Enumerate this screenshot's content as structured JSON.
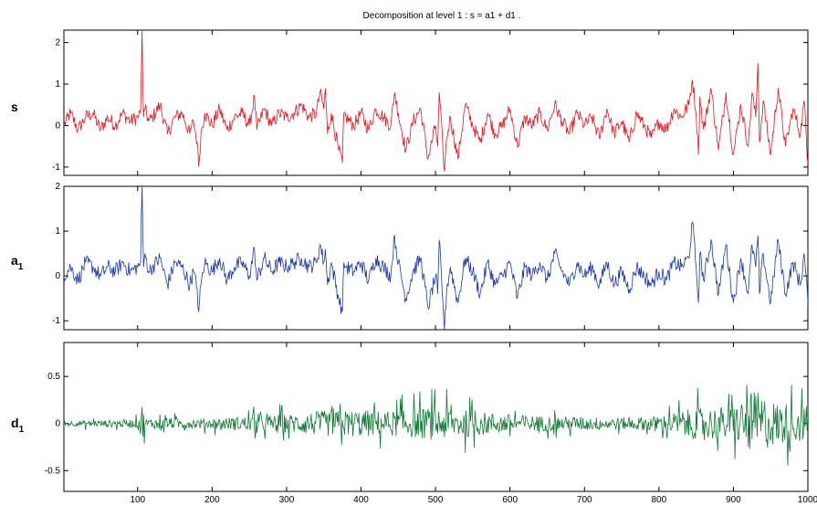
{
  "chart_data": [
    {
      "type": "line",
      "title": "Decomposition at level 1 : s = a1 + d1 .",
      "ylabel": "s",
      "color": "#e8141c",
      "xlim": [
        1,
        1000
      ],
      "ylim": [
        -1.2,
        2.3
      ],
      "yticks": [
        -1,
        0,
        1,
        2
      ],
      "xticks": [
        100,
        200,
        300,
        400,
        500,
        600,
        700,
        800,
        900,
        1000
      ],
      "show_xtick_labels": false,
      "series": [
        {
          "x": [
            1,
            10,
            20,
            30,
            40,
            50,
            60,
            70,
            80,
            90,
            100,
            104,
            106,
            107,
            108,
            110,
            115,
            120,
            130,
            140,
            150,
            160,
            170,
            175,
            180,
            182,
            185,
            190,
            200,
            210,
            220,
            230,
            240,
            250,
            257,
            260,
            270,
            280,
            290,
            300,
            310,
            320,
            330,
            340,
            345,
            350,
            352,
            355,
            360,
            370,
            375,
            377,
            380,
            390,
            400,
            410,
            420,
            430,
            440,
            445,
            450,
            460,
            470,
            480,
            490,
            500,
            503,
            505,
            510,
            512,
            515,
            520,
            530,
            540,
            550,
            560,
            570,
            580,
            590,
            600,
            610,
            620,
            630,
            640,
            650,
            660,
            670,
            680,
            690,
            700,
            710,
            720,
            730,
            740,
            750,
            760,
            770,
            780,
            790,
            800,
            810,
            820,
            830,
            840,
            845,
            850,
            853,
            855,
            860,
            870,
            880,
            890,
            900,
            910,
            920,
            925,
            930,
            933,
            935,
            940,
            950,
            960,
            970,
            980,
            990,
            995,
            1000
          ],
          "y": [
            0.0,
            0.3,
            -0.1,
            0.2,
            0.3,
            -0.1,
            0.2,
            0.0,
            0.3,
            0.1,
            0.2,
            0.3,
            2.3,
            0.9,
            0.2,
            0.4,
            0.1,
            0.2,
            0.5,
            -0.2,
            0.2,
            0.3,
            -0.2,
            0.1,
            -0.4,
            -1.0,
            -0.2,
            0.3,
            0.0,
            0.4,
            -0.1,
            0.2,
            0.3,
            0.0,
            0.7,
            -0.1,
            0.4,
            0.0,
            0.3,
            0.2,
            0.3,
            0.5,
            0.2,
            0.3,
            0.8,
            0.4,
            0.9,
            -0.2,
            0.3,
            -0.6,
            -0.9,
            0.3,
            0.2,
            0.0,
            0.3,
            -0.1,
            0.4,
            0.2,
            0.0,
            0.8,
            0.3,
            -0.6,
            0.1,
            0.4,
            -0.8,
            0.0,
            -0.5,
            0.8,
            -0.6,
            -1.1,
            -0.3,
            0.2,
            -0.8,
            0.5,
            0.0,
            -0.4,
            0.3,
            -0.2,
            0.0,
            0.4,
            -0.5,
            0.2,
            0.0,
            0.3,
            -0.1,
            0.5,
            0.1,
            -0.2,
            0.3,
            0.0,
            0.2,
            -0.3,
            0.4,
            -0.2,
            0.1,
            -0.4,
            0.3,
            0.0,
            -0.3,
            0.1,
            -0.1,
            0.4,
            0.2,
            0.5,
            1.1,
            0.3,
            -0.7,
            0.7,
            -0.1,
            0.9,
            -0.6,
            0.8,
            -0.7,
            0.5,
            -0.5,
            0.8,
            0.2,
            1.5,
            -0.4,
            0.6,
            -0.7,
            0.9,
            -0.5,
            0.4,
            -0.2,
            0.6,
            -0.9
          ]
        }
      ]
    },
    {
      "type": "line",
      "ylabel": "a",
      "ylabel_sub": "1",
      "color": "#1a3aa6",
      "xlim": [
        1,
        1000
      ],
      "ylim": [
        -1.2,
        2.0
      ],
      "yticks": [
        -1,
        0,
        1,
        2
      ],
      "xticks": [
        100,
        200,
        300,
        400,
        500,
        600,
        700,
        800,
        900,
        1000
      ],
      "show_xtick_labels": false,
      "series": [
        {
          "x": [
            1,
            10,
            20,
            30,
            40,
            50,
            60,
            70,
            80,
            90,
            100,
            104,
            106,
            107,
            108,
            110,
            115,
            120,
            130,
            140,
            150,
            160,
            170,
            175,
            180,
            182,
            185,
            190,
            200,
            210,
            220,
            230,
            240,
            250,
            257,
            260,
            270,
            280,
            290,
            300,
            310,
            320,
            330,
            340,
            345,
            350,
            352,
            355,
            360,
            370,
            375,
            377,
            380,
            390,
            400,
            410,
            420,
            430,
            440,
            445,
            450,
            460,
            470,
            480,
            490,
            500,
            503,
            505,
            510,
            512,
            515,
            520,
            530,
            540,
            550,
            560,
            570,
            580,
            590,
            600,
            610,
            620,
            630,
            640,
            650,
            660,
            670,
            680,
            690,
            700,
            710,
            720,
            730,
            740,
            750,
            760,
            770,
            780,
            790,
            800,
            810,
            820,
            830,
            840,
            845,
            850,
            853,
            855,
            860,
            870,
            880,
            890,
            900,
            910,
            920,
            925,
            930,
            933,
            935,
            940,
            950,
            960,
            970,
            980,
            990,
            995,
            1000
          ],
          "y": [
            0.0,
            0.2,
            -0.1,
            0.3,
            0.2,
            0.0,
            0.2,
            0.1,
            0.3,
            0.1,
            0.2,
            0.3,
            2.0,
            0.9,
            0.2,
            0.5,
            0.1,
            0.2,
            0.4,
            -0.2,
            0.3,
            0.2,
            -0.2,
            0.1,
            -0.3,
            -0.8,
            -0.2,
            0.3,
            0.1,
            0.4,
            -0.1,
            0.2,
            0.3,
            0.0,
            0.6,
            -0.1,
            0.4,
            0.1,
            0.3,
            0.2,
            0.3,
            0.4,
            0.2,
            0.3,
            0.7,
            0.3,
            0.6,
            -0.2,
            0.3,
            -0.5,
            -0.8,
            0.3,
            0.2,
            0.1,
            0.3,
            -0.1,
            0.4,
            0.2,
            0.0,
            0.9,
            0.3,
            -0.5,
            0.1,
            0.4,
            -0.7,
            0.0,
            -0.4,
            0.8,
            -0.6,
            -1.2,
            -0.3,
            0.2,
            -0.6,
            0.4,
            0.1,
            -0.4,
            0.3,
            -0.2,
            0.0,
            0.3,
            -0.5,
            0.2,
            0.0,
            0.3,
            -0.1,
            0.5,
            0.1,
            -0.2,
            0.3,
            0.0,
            0.2,
            -0.2,
            0.3,
            -0.2,
            0.1,
            -0.3,
            0.2,
            0.0,
            -0.2,
            0.1,
            -0.1,
            0.3,
            0.2,
            0.4,
            1.2,
            0.2,
            -0.6,
            0.5,
            -0.1,
            0.8,
            -0.4,
            0.7,
            -0.6,
            0.4,
            -0.4,
            0.7,
            0.2,
            0.9,
            -0.4,
            0.5,
            -0.6,
            0.8,
            -0.4,
            0.3,
            -0.2,
            0.5,
            -0.6
          ]
        }
      ]
    },
    {
      "type": "line",
      "ylabel": "d",
      "ylabel_sub": "1",
      "color": "#0f7a33",
      "xlim": [
        1,
        1000
      ],
      "ylim": [
        -0.72,
        0.86
      ],
      "yticks": [
        -0.5,
        0,
        0.5
      ],
      "ytick_labels": [
        "-0.5",
        "0",
        "0.5"
      ],
      "xticks": [
        100,
        200,
        300,
        400,
        500,
        600,
        700,
        800,
        900,
        1000
      ],
      "xtick_labels": [
        "100",
        "200",
        "300",
        "400",
        "500",
        "600",
        "700",
        "800",
        "900",
        "1000"
      ],
      "show_xtick_labels": true,
      "noise_envelope": {
        "x": [
          1,
          50,
          100,
          106,
          110,
          150,
          200,
          250,
          300,
          350,
          400,
          450,
          500,
          550,
          600,
          650,
          700,
          750,
          800,
          850,
          900,
          930,
          950,
          1000
        ],
        "amplitude": [
          0.06,
          0.08,
          0.1,
          0.5,
          0.12,
          0.12,
          0.12,
          0.18,
          0.22,
          0.3,
          0.32,
          0.3,
          0.4,
          0.3,
          0.22,
          0.18,
          0.16,
          0.14,
          0.18,
          0.38,
          0.4,
          0.8,
          0.55,
          0.42
        ]
      }
    }
  ]
}
